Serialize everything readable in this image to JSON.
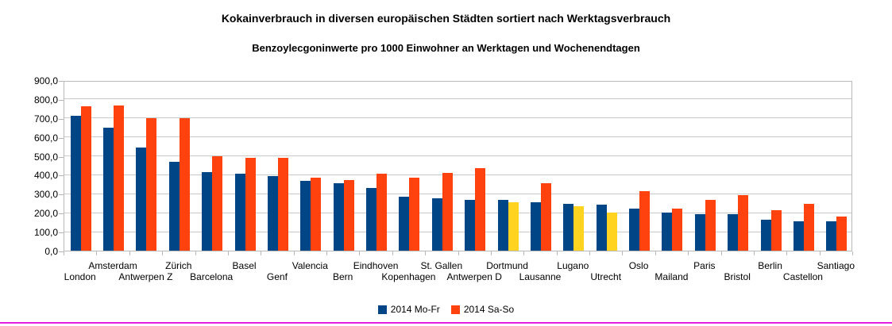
{
  "page": {
    "bottom_rule_color": "#e321e3"
  },
  "chart_data": {
    "type": "bar",
    "title": "Kokainverbrauch in diversen europäischen Städten sortiert nach Werktagsverbrauch",
    "subtitle": "Benzoylecgoninwerte pro 1000 Einwohner an Werktagen und Wochenendtagen",
    "categories": [
      "London",
      "Amsterdam",
      "Antwerpen Z",
      "Zürich",
      "Barcelona",
      "Basel",
      "Genf",
      "Valencia",
      "Bern",
      "Eindhoven",
      "Kopenhagen",
      "St. Gallen",
      "Antwerpen D",
      "Dortmund",
      "Lausanne",
      "Lugano",
      "Utrecht",
      "Oslo",
      "Mailand",
      "Paris",
      "Bristol",
      "Berlin",
      "Castellon",
      "Santiago"
    ],
    "series": [
      {
        "name": "2014 Mo-Fr",
        "color": "#004586",
        "values": [
          710,
          650,
          545,
          470,
          415,
          405,
          394,
          370,
          354,
          330,
          283,
          276,
          269,
          268,
          257,
          245,
          242,
          220,
          200,
          192,
          192,
          164,
          157,
          155
        ]
      },
      {
        "name": "2014 Sa-So",
        "color": "#ff420e",
        "values": [
          760,
          765,
          700,
          698,
          498,
          489,
          489,
          385,
          372,
          406,
          386,
          410,
          434,
          255,
          356,
          235,
          203,
          315,
          220,
          266,
          295,
          215,
          248,
          180
        ]
      }
    ],
    "weekend_highlight": {
      "color": "#ffd320",
      "indices": [
        13,
        15,
        16
      ]
    },
    "ylim": [
      0,
      900
    ],
    "y_ticks": [
      0,
      100,
      200,
      300,
      400,
      500,
      600,
      700,
      800,
      900
    ],
    "y_tick_labels": [
      "0,0",
      "100,0",
      "200,0",
      "300,0",
      "400,0",
      "500,0",
      "600,0",
      "700,0",
      "800,0",
      "900,0"
    ],
    "grid": "horizontal",
    "gridline_color": "#c9c9c9",
    "legend_position": "bottom"
  }
}
